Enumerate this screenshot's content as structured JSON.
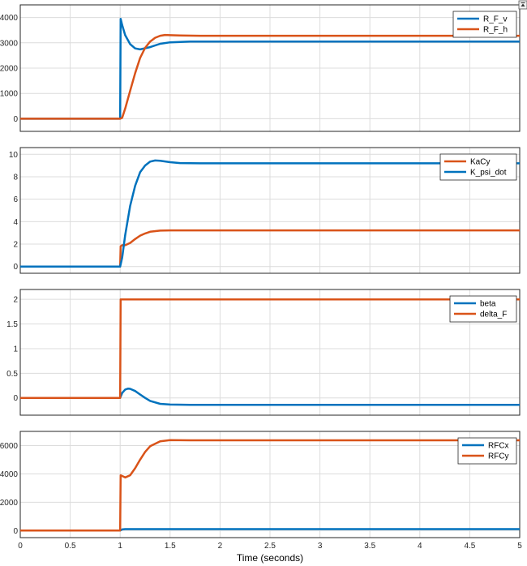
{
  "window": {
    "pin_icon": "pin-icon"
  },
  "xlabel": "Time (seconds)",
  "colors": {
    "blue": "#0072BD",
    "orange": "#D95319",
    "grid": "#DCDCDC",
    "axis": "#262626"
  },
  "chart_data": [
    {
      "type": "line",
      "xlim": [
        0,
        5
      ],
      "ylim": [
        -500,
        4500
      ],
      "xticks": [
        "0",
        "0.5",
        "1",
        "1.5",
        "2",
        "2.5",
        "3",
        "3.5",
        "4",
        "4.5",
        "5"
      ],
      "yticks": [
        0,
        1000,
        2000,
        3000,
        4000
      ],
      "legend_placement": "top-right",
      "series": [
        {
          "name": "R_F_v",
          "color": "#0072BD",
          "x": [
            0,
            1,
            1.005,
            1.02,
            1.05,
            1.1,
            1.15,
            1.2,
            1.3,
            1.4,
            1.5,
            1.7,
            2,
            5
          ],
          "y": [
            0,
            0,
            3950,
            3700,
            3300,
            2950,
            2780,
            2740,
            2830,
            2960,
            3020,
            3050,
            3050,
            3050
          ]
        },
        {
          "name": "R_F_h",
          "color": "#D95319",
          "x": [
            0,
            1,
            1.02,
            1.05,
            1.1,
            1.15,
            1.2,
            1.25,
            1.3,
            1.35,
            1.4,
            1.45,
            1.5,
            1.6,
            1.8,
            2,
            5
          ],
          "y": [
            0,
            0,
            40,
            400,
            1100,
            1800,
            2400,
            2800,
            3050,
            3200,
            3280,
            3310,
            3300,
            3290,
            3280,
            3280,
            3280
          ]
        }
      ]
    },
    {
      "type": "line",
      "xlim": [
        0,
        5
      ],
      "ylim": [
        -0.6,
        10.6
      ],
      "xticks": [
        "0",
        "0.5",
        "1",
        "1.5",
        "2",
        "2.5",
        "3",
        "3.5",
        "4",
        "4.5",
        "5"
      ],
      "yticks": [
        0,
        2,
        4,
        6,
        8,
        10
      ],
      "legend_placement": "top-right",
      "series": [
        {
          "name": "KaCy",
          "color": "#D95319",
          "x": [
            0,
            1,
            1.005,
            1.02,
            1.05,
            1.1,
            1.15,
            1.2,
            1.25,
            1.3,
            1.4,
            1.5,
            1.7,
            2,
            5
          ],
          "y": [
            0,
            0,
            1.8,
            1.9,
            1.9,
            2.1,
            2.45,
            2.75,
            2.95,
            3.1,
            3.2,
            3.22,
            3.22,
            3.22,
            3.22
          ]
        },
        {
          "name": "K_psi_dot",
          "color": "#0072BD",
          "x": [
            0,
            1,
            1.02,
            1.05,
            1.1,
            1.15,
            1.2,
            1.25,
            1.3,
            1.35,
            1.4,
            1.5,
            1.6,
            1.8,
            2,
            5
          ],
          "y": [
            0,
            0,
            0.8,
            2.8,
            5.4,
            7.2,
            8.4,
            9.0,
            9.35,
            9.45,
            9.42,
            9.3,
            9.22,
            9.2,
            9.2,
            9.2
          ]
        }
      ]
    },
    {
      "type": "line",
      "xlim": [
        0,
        5
      ],
      "ylim": [
        -0.35,
        2.2
      ],
      "xticks": [
        "0",
        "0.5",
        "1",
        "1.5",
        "2",
        "2.5",
        "3",
        "3.5",
        "4",
        "4.5",
        "5"
      ],
      "yticks": [
        0,
        0.5,
        1,
        1.5,
        2
      ],
      "legend_placement": "top-right",
      "series": [
        {
          "name": "beta",
          "color": "#0072BD",
          "x": [
            0,
            1,
            1.02,
            1.05,
            1.08,
            1.1,
            1.15,
            1.2,
            1.25,
            1.3,
            1.4,
            1.5,
            1.7,
            2,
            5
          ],
          "y": [
            0,
            0,
            0.1,
            0.17,
            0.19,
            0.185,
            0.14,
            0.07,
            0.0,
            -0.06,
            -0.12,
            -0.135,
            -0.14,
            -0.14,
            -0.14
          ]
        },
        {
          "name": "delta_F",
          "color": "#D95319",
          "x": [
            0,
            1,
            1.005,
            5
          ],
          "y": [
            0,
            0,
            2,
            2
          ]
        }
      ]
    },
    {
      "type": "line",
      "xlim": [
        0,
        5
      ],
      "ylim": [
        -500,
        7000
      ],
      "xticks": [
        "0",
        "0.5",
        "1",
        "1.5",
        "2",
        "2.5",
        "3",
        "3.5",
        "4",
        "4.5",
        "5"
      ],
      "yticks": [
        0,
        2000,
        4000,
        6000
      ],
      "legend_placement": "top-right",
      "series": [
        {
          "name": "RFCx",
          "color": "#0072BD",
          "x": [
            0,
            1,
            1.02,
            1.05,
            1.2,
            5
          ],
          "y": [
            0,
            0,
            80,
            100,
            100,
            100
          ]
        },
        {
          "name": "RFCy",
          "color": "#D95319",
          "x": [
            0,
            1,
            1.005,
            1.02,
            1.05,
            1.1,
            1.15,
            1.2,
            1.25,
            1.3,
            1.4,
            1.5,
            1.7,
            2,
            5
          ],
          "y": [
            0,
            0,
            3900,
            3850,
            3750,
            3900,
            4400,
            5000,
            5550,
            5950,
            6300,
            6380,
            6370,
            6370,
            6370
          ]
        }
      ]
    }
  ]
}
